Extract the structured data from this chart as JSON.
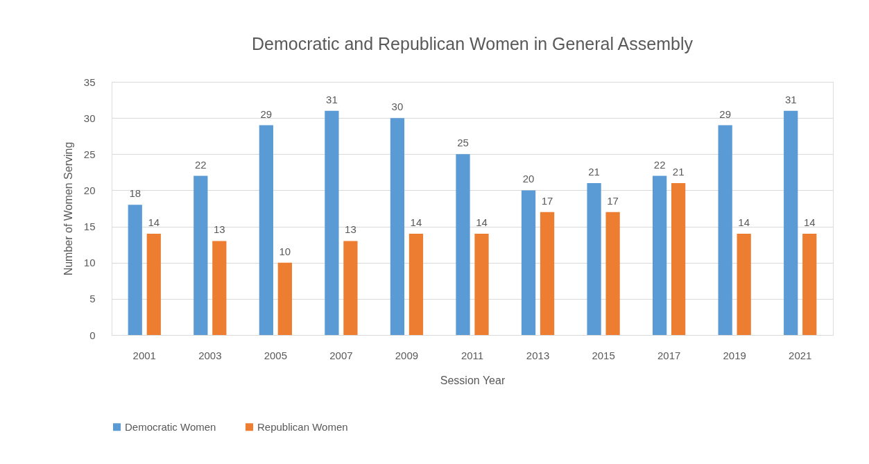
{
  "chart_data": {
    "type": "bar",
    "title": "Democratic and Republican Women in General Assembly",
    "xlabel": "Session Year",
    "ylabel": "Number of Women Serving",
    "categories": [
      "2001",
      "2003",
      "2005",
      "2007",
      "2009",
      "2011",
      "2013",
      "2015",
      "2017",
      "2019",
      "2021"
    ],
    "series": [
      {
        "name": "Democratic Women",
        "color": "#5b9bd5",
        "values": [
          18,
          22,
          29,
          31,
          30,
          25,
          20,
          21,
          22,
          29,
          31
        ]
      },
      {
        "name": "Republican Women",
        "color": "#ed7d31",
        "values": [
          14,
          13,
          10,
          13,
          14,
          14,
          17,
          17,
          21,
          14,
          14
        ]
      }
    ],
    "ylim": [
      0,
      35
    ],
    "yticks": [
      0,
      5,
      10,
      15,
      20,
      25,
      30,
      35
    ],
    "grid": "y",
    "legend": "bottom",
    "data_labels": true
  }
}
